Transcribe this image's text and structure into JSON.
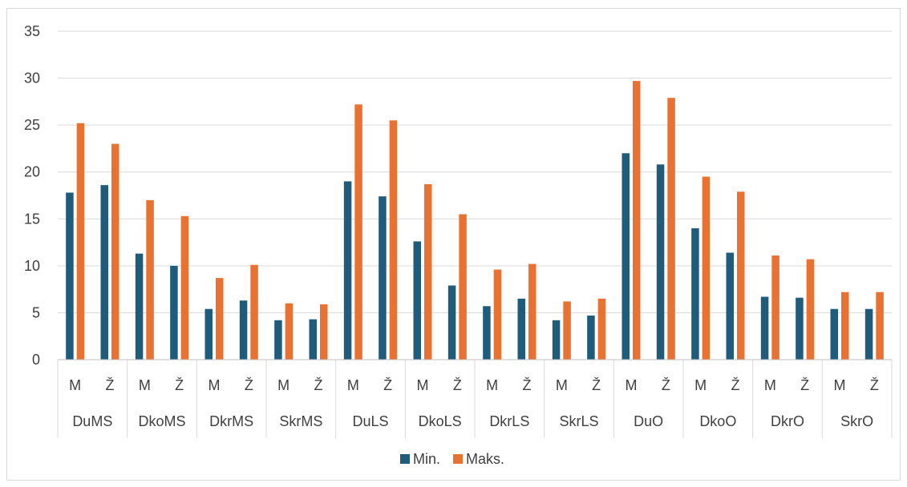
{
  "chart_data": {
    "type": "bar",
    "title": "",
    "xlabel": "",
    "ylabel": "",
    "ylim": [
      0,
      35
    ],
    "yticks": [
      0,
      5,
      10,
      15,
      20,
      25,
      30,
      35
    ],
    "grid": true,
    "legend_position": "bottom",
    "groups": [
      "DuMS",
      "DkoMS",
      "DkrMS",
      "SkrMS",
      "DuLS",
      "DkoLS",
      "DkrLS",
      "SkrLS",
      "DuO",
      "DkoO",
      "DkrO",
      "SkrO"
    ],
    "subcategories": [
      "M",
      "Ž"
    ],
    "series": [
      {
        "name": "Min.",
        "color": "#1f5b7a",
        "values": [
          17.8,
          18.6,
          11.3,
          10.0,
          5.4,
          6.3,
          4.2,
          4.3,
          19.0,
          17.4,
          12.6,
          7.9,
          5.7,
          6.5,
          4.2,
          4.7,
          22.0,
          20.8,
          14.0,
          11.4,
          6.7,
          6.6,
          5.4,
          5.4
        ]
      },
      {
        "name": "Maks.",
        "color": "#e97132",
        "values": [
          25.2,
          23.0,
          17.0,
          15.3,
          8.7,
          10.1,
          6.0,
          5.9,
          27.2,
          25.5,
          18.7,
          15.5,
          9.6,
          10.2,
          6.2,
          6.5,
          29.7,
          27.9,
          19.5,
          17.9,
          11.1,
          10.7,
          7.2,
          7.2
        ]
      }
    ]
  }
}
